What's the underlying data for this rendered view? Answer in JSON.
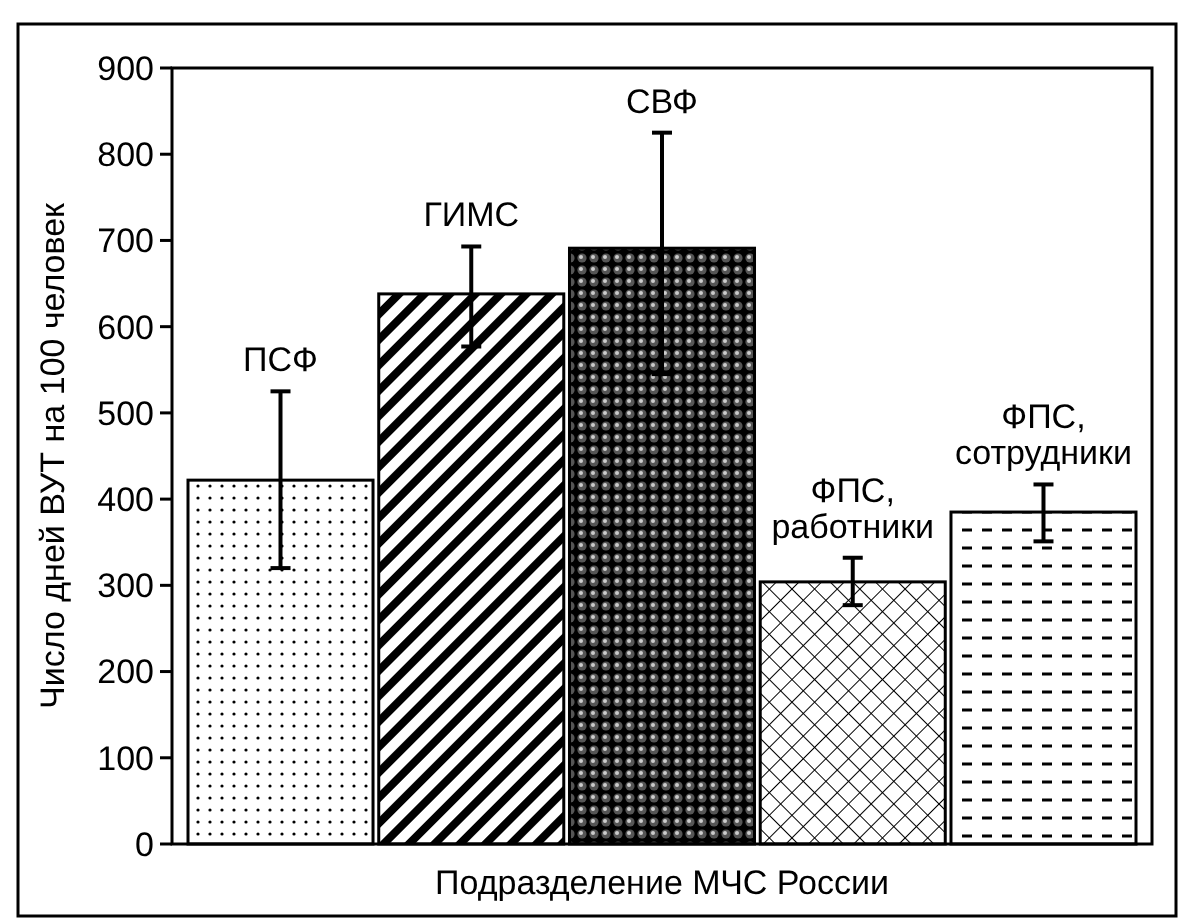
{
  "chart_data": {
    "type": "bar",
    "xlabel": "Подразделение МЧС России",
    "ylabel": "Число дней  ВУТ на 100 человек",
    "categories": [
      "ПСФ",
      "ГИМС",
      "СВФ",
      "ФПС,\nработники",
      "ФПС,\nсотрудники"
    ],
    "values": [
      422,
      638,
      691,
      304,
      385
    ],
    "errors": [
      [
        320,
        525
      ],
      [
        577,
        693
      ],
      [
        545,
        825
      ],
      [
        277,
        332
      ],
      [
        351,
        417
      ]
    ],
    "color": "#000000",
    "ylim": [
      0,
      900
    ],
    "yticks": [
      0,
      100,
      200,
      300,
      400,
      500,
      600,
      700,
      800,
      900
    ],
    "grid": false
  }
}
